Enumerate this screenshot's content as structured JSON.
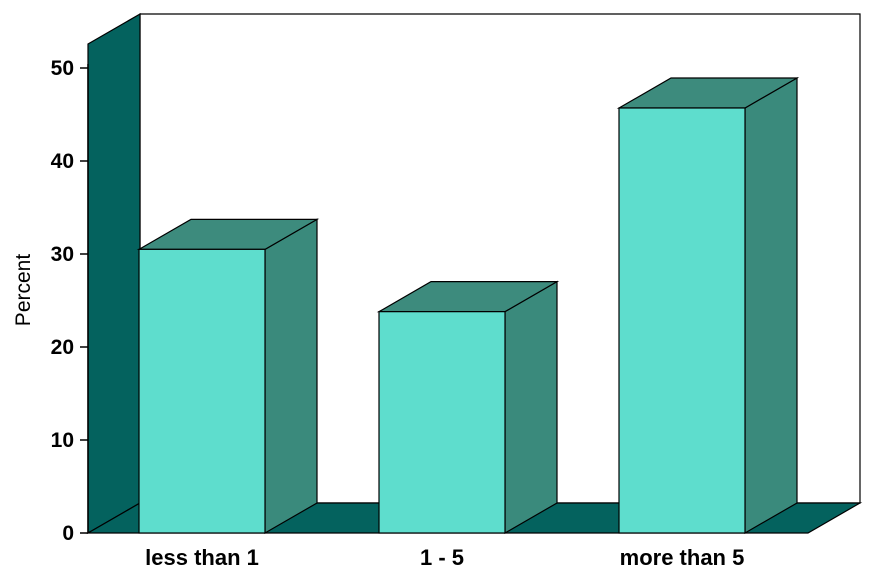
{
  "chart_data": {
    "type": "bar",
    "style": "3d",
    "title": "",
    "xlabel": "",
    "ylabel": "Percent",
    "ylim": [
      0,
      50
    ],
    "yticks": [
      "0",
      "10",
      "20",
      "30",
      "40",
      "50"
    ],
    "categories": [
      "less than 1",
      "1 - 5",
      "more than 5"
    ],
    "values": [
      30.5,
      23.8,
      45.7
    ],
    "grid": false,
    "legend": "none",
    "colors": {
      "bar_front": "#5EDDCD",
      "bar_side": "#3A8A7C",
      "bar_top": "#3D8B7D",
      "wall_side": "#04625E",
      "floor": "#04625E",
      "back_wall": "#FFFFFF",
      "outline": "#000000"
    }
  }
}
